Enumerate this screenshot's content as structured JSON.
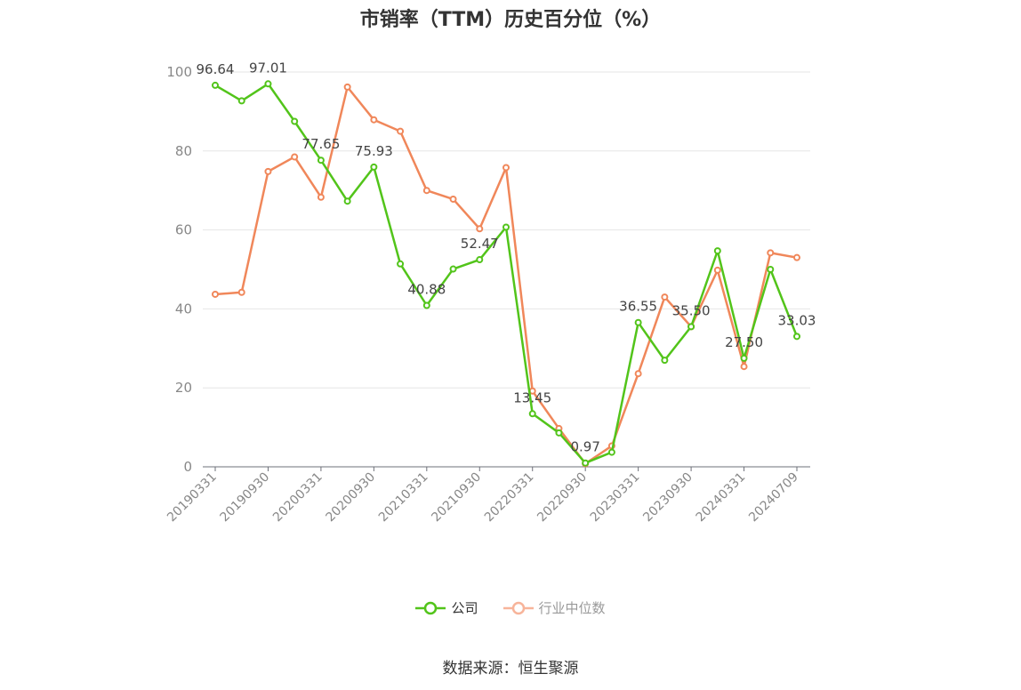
{
  "title": "市销率（TTM）历史百分位（%）",
  "source": "数据来源：恒生聚源",
  "colors": {
    "company": "#52c41a",
    "industry": "#f0875a",
    "industry_legend": "#f7b49a"
  },
  "chart_data": {
    "type": "line",
    "title": "市销率（TTM）历史百分位（%）",
    "xlabel": "",
    "ylabel": "",
    "ylim": [
      0,
      100
    ],
    "yticks": [
      0,
      20,
      40,
      60,
      80,
      100
    ],
    "grid": true,
    "legend_position": "bottom",
    "x_tick_labels": [
      "20190331",
      "20190930",
      "20200331",
      "20200930",
      "20210331",
      "20210930",
      "20220331",
      "20220930",
      "20230331",
      "20230930",
      "20240331",
      "20240709"
    ],
    "x": [
      "20190331",
      "20190630",
      "20190930",
      "20191231",
      "20200331",
      "20200630",
      "20200930",
      "20201231",
      "20210331",
      "20210630",
      "20210930",
      "20211231",
      "20220331",
      "20220630",
      "20220930",
      "20221231",
      "20230331",
      "20230630",
      "20230930",
      "20231231",
      "20240331",
      "20240630",
      "20240709"
    ],
    "series": [
      {
        "name": "公司",
        "values": [
          96.64,
          92.7,
          97.01,
          87.5,
          77.65,
          67.3,
          75.93,
          51.4,
          40.88,
          50.1,
          52.47,
          60.7,
          13.45,
          8.6,
          0.97,
          3.7,
          36.55,
          27.0,
          35.5,
          54.7,
          27.5,
          50.0,
          33.03
        ],
        "labels": [
          "96.64",
          null,
          "97.01",
          null,
          "77.65",
          null,
          "75.93",
          null,
          "40.88",
          null,
          "52.47",
          null,
          "13.45",
          null,
          "0.97",
          null,
          "36.55",
          null,
          "35.50",
          null,
          "27.50",
          null,
          "33.03"
        ]
      },
      {
        "name": "行业中位数",
        "values": [
          43.7,
          44.2,
          74.8,
          78.5,
          68.3,
          96.2,
          87.9,
          85.0,
          70.0,
          67.8,
          60.3,
          75.8,
          19.2,
          9.7,
          0.8,
          5.3,
          23.6,
          43.0,
          35.5,
          49.8,
          25.4,
          54.2,
          53.0
        ]
      }
    ]
  }
}
